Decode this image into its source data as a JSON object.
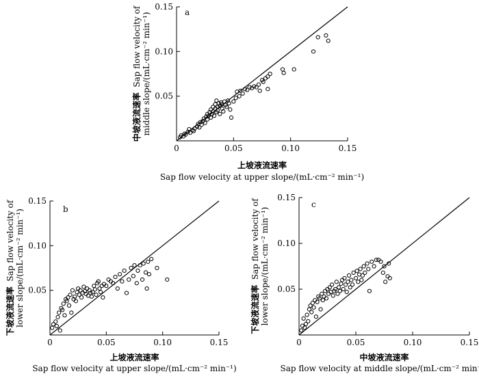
{
  "chart_data": [
    {
      "type": "scatter",
      "panel": "a",
      "xlabel_cn": "上坡液流速率",
      "xlabel_en": "Sap flow velocity at upper slope/(mL·cm⁻² min⁻¹)",
      "ylabel_cn": "中坡液流速率",
      "ylabel_en_1": "Sap flow velocity of",
      "ylabel_en_2": "middle slope/(mL·cm⁻² min⁻¹)",
      "xlim": [
        0,
        0.15
      ],
      "ylim": [
        0,
        0.15
      ],
      "xticks": [
        "0",
        "0.05",
        "0.10",
        "0.15"
      ],
      "yticks": [
        "0.05",
        "0.10",
        "0.15"
      ],
      "reference_line": "1:1",
      "points": [
        [
          0.003,
          0.004
        ],
        [
          0.004,
          0.006
        ],
        [
          0.006,
          0.005
        ],
        [
          0.007,
          0.008
        ],
        [
          0.008,
          0.007
        ],
        [
          0.01,
          0.01
        ],
        [
          0.011,
          0.013
        ],
        [
          0.012,
          0.009
        ],
        [
          0.014,
          0.012
        ],
        [
          0.015,
          0.011
        ],
        [
          0.016,
          0.014
        ],
        [
          0.018,
          0.016
        ],
        [
          0.019,
          0.019
        ],
        [
          0.02,
          0.015
        ],
        [
          0.021,
          0.021
        ],
        [
          0.022,
          0.018
        ],
        [
          0.023,
          0.022
        ],
        [
          0.024,
          0.025
        ],
        [
          0.025,
          0.02
        ],
        [
          0.026,
          0.027
        ],
        [
          0.027,
          0.024
        ],
        [
          0.027,
          0.03
        ],
        [
          0.028,
          0.028
        ],
        [
          0.029,
          0.032
        ],
        [
          0.03,
          0.026
        ],
        [
          0.03,
          0.035
        ],
        [
          0.031,
          0.03
        ],
        [
          0.032,
          0.038
        ],
        [
          0.032,
          0.033
        ],
        [
          0.033,
          0.028
        ],
        [
          0.034,
          0.036
        ],
        [
          0.034,
          0.041
        ],
        [
          0.035,
          0.032
        ],
        [
          0.035,
          0.045
        ],
        [
          0.036,
          0.038
        ],
        [
          0.036,
          0.034
        ],
        [
          0.037,
          0.042
        ],
        [
          0.038,
          0.03
        ],
        [
          0.038,
          0.039
        ],
        [
          0.039,
          0.043
        ],
        [
          0.04,
          0.036
        ],
        [
          0.04,
          0.041
        ],
        [
          0.041,
          0.033
        ],
        [
          0.042,
          0.044
        ],
        [
          0.043,
          0.04
        ],
        [
          0.044,
          0.038
        ],
        [
          0.045,
          0.045
        ],
        [
          0.046,
          0.042
        ],
        [
          0.047,
          0.035
        ],
        [
          0.048,
          0.026
        ],
        [
          0.05,
          0.044
        ],
        [
          0.052,
          0.048
        ],
        [
          0.053,
          0.055
        ],
        [
          0.055,
          0.05
        ],
        [
          0.056,
          0.056
        ],
        [
          0.058,
          0.053
        ],
        [
          0.06,
          0.058
        ],
        [
          0.062,
          0.057
        ],
        [
          0.064,
          0.06
        ],
        [
          0.066,
          0.059
        ],
        [
          0.068,
          0.061
        ],
        [
          0.07,
          0.06
        ],
        [
          0.072,
          0.063
        ],
        [
          0.073,
          0.056
        ],
        [
          0.075,
          0.068
        ],
        [
          0.076,
          0.066
        ],
        [
          0.078,
          0.07
        ],
        [
          0.08,
          0.058
        ],
        [
          0.08,
          0.072
        ],
        [
          0.082,
          0.075
        ],
        [
          0.093,
          0.08
        ],
        [
          0.094,
          0.076
        ],
        [
          0.103,
          0.08
        ],
        [
          0.12,
          0.1
        ],
        [
          0.124,
          0.116
        ],
        [
          0.131,
          0.118
        ],
        [
          0.133,
          0.112
        ]
      ]
    },
    {
      "type": "scatter",
      "panel": "b",
      "xlabel_cn": "上坡液流速率",
      "xlabel_en": "Sap flow velocity at upper slope/(mL·cm⁻² min⁻¹)",
      "ylabel_cn": "下坡液流速率",
      "ylabel_en_1": "Sap flow velocity of",
      "ylabel_en_2": "lower slope/(mL·cm⁻² min⁻¹)",
      "xlim": [
        0,
        0.15
      ],
      "ylim": [
        0,
        0.15
      ],
      "xticks": [
        "0",
        "0.05",
        "0.10",
        "0.15"
      ],
      "yticks": [
        "0.05",
        "0.10",
        "0.15"
      ],
      "reference_line": "1:1",
      "points": [
        [
          0.002,
          0.008
        ],
        [
          0.003,
          0.012
        ],
        [
          0.005,
          0.015
        ],
        [
          0.006,
          0.01
        ],
        [
          0.007,
          0.02
        ],
        [
          0.008,
          0.025
        ],
        [
          0.009,
          0.005
        ],
        [
          0.01,
          0.03
        ],
        [
          0.011,
          0.028
        ],
        [
          0.012,
          0.035
        ],
        [
          0.013,
          0.022
        ],
        [
          0.014,
          0.04
        ],
        [
          0.015,
          0.038
        ],
        [
          0.016,
          0.042
        ],
        [
          0.017,
          0.033
        ],
        [
          0.018,
          0.045
        ],
        [
          0.019,
          0.025
        ],
        [
          0.02,
          0.05
        ],
        [
          0.021,
          0.04
        ],
        [
          0.022,
          0.043
        ],
        [
          0.023,
          0.038
        ],
        [
          0.024,
          0.048
        ],
        [
          0.025,
          0.052
        ],
        [
          0.026,
          0.045
        ],
        [
          0.027,
          0.05
        ],
        [
          0.028,
          0.042
        ],
        [
          0.029,
          0.047
        ],
        [
          0.03,
          0.054
        ],
        [
          0.031,
          0.049
        ],
        [
          0.032,
          0.046
        ],
        [
          0.033,
          0.052
        ],
        [
          0.034,
          0.044
        ],
        [
          0.035,
          0.05
        ],
        [
          0.036,
          0.047
        ],
        [
          0.037,
          0.043
        ],
        [
          0.038,
          0.048
        ],
        [
          0.039,
          0.055
        ],
        [
          0.04,
          0.051
        ],
        [
          0.041,
          0.045
        ],
        [
          0.042,
          0.058
        ],
        [
          0.043,
          0.06
        ],
        [
          0.044,
          0.052
        ],
        [
          0.045,
          0.048
        ],
        [
          0.046,
          0.055
        ],
        [
          0.047,
          0.042
        ],
        [
          0.048,
          0.057
        ],
        [
          0.05,
          0.055
        ],
        [
          0.052,
          0.062
        ],
        [
          0.054,
          0.06
        ],
        [
          0.056,
          0.058
        ],
        [
          0.058,
          0.065
        ],
        [
          0.06,
          0.052
        ],
        [
          0.062,
          0.068
        ],
        [
          0.064,
          0.06
        ],
        [
          0.066,
          0.072
        ],
        [
          0.068,
          0.047
        ],
        [
          0.07,
          0.062
        ],
        [
          0.072,
          0.075
        ],
        [
          0.074,
          0.066
        ],
        [
          0.075,
          0.078
        ],
        [
          0.077,
          0.058
        ],
        [
          0.078,
          0.072
        ],
        [
          0.08,
          0.078
        ],
        [
          0.082,
          0.062
        ],
        [
          0.083,
          0.08
        ],
        [
          0.085,
          0.07
        ],
        [
          0.086,
          0.052
        ],
        [
          0.087,
          0.082
        ],
        [
          0.088,
          0.068
        ],
        [
          0.09,
          0.085
        ],
        [
          0.095,
          0.075
        ],
        [
          0.104,
          0.062
        ]
      ]
    },
    {
      "type": "scatter",
      "panel": "c",
      "xlabel_cn": "中坡液流速率",
      "xlabel_en": "Sap flow velocity at middle slope/(mL·cm⁻² min⁻¹)",
      "ylabel_cn": "下坡液流速率",
      "ylabel_en_1": "Sap flow velocity of",
      "ylabel_en_2": "lower slope/(mL·cm⁻² min⁻¹)",
      "xlim": [
        0,
        0.15
      ],
      "ylim": [
        0,
        0.15
      ],
      "xticks": [
        "0",
        "0.05",
        "0.10",
        "0.15"
      ],
      "yticks": [
        "0.05",
        "0.10",
        "0.15"
      ],
      "reference_line": "1:1",
      "points": [
        [
          0.002,
          0.005
        ],
        [
          0.003,
          0.01
        ],
        [
          0.004,
          0.018
        ],
        [
          0.005,
          0.008
        ],
        [
          0.006,
          0.012
        ],
        [
          0.007,
          0.022
        ],
        [
          0.008,
          0.015
        ],
        [
          0.009,
          0.028
        ],
        [
          0.01,
          0.032
        ],
        [
          0.011,
          0.025
        ],
        [
          0.012,
          0.035
        ],
        [
          0.013,
          0.03
        ],
        [
          0.014,
          0.038
        ],
        [
          0.015,
          0.02
        ],
        [
          0.016,
          0.036
        ],
        [
          0.017,
          0.042
        ],
        [
          0.018,
          0.04
        ],
        [
          0.019,
          0.028
        ],
        [
          0.02,
          0.045
        ],
        [
          0.021,
          0.038
        ],
        [
          0.022,
          0.042
        ],
        [
          0.023,
          0.048
        ],
        [
          0.024,
          0.04
        ],
        [
          0.025,
          0.05
        ],
        [
          0.026,
          0.045
        ],
        [
          0.027,
          0.052
        ],
        [
          0.028,
          0.047
        ],
        [
          0.029,
          0.055
        ],
        [
          0.03,
          0.043
        ],
        [
          0.031,
          0.048
        ],
        [
          0.032,
          0.05
        ],
        [
          0.033,
          0.058
        ],
        [
          0.034,
          0.045
        ],
        [
          0.035,
          0.052
        ],
        [
          0.036,
          0.048
        ],
        [
          0.037,
          0.056
        ],
        [
          0.038,
          0.06
        ],
        [
          0.039,
          0.05
        ],
        [
          0.04,
          0.062
        ],
        [
          0.041,
          0.055
        ],
        [
          0.042,
          0.047
        ],
        [
          0.043,
          0.058
        ],
        [
          0.044,
          0.065
        ],
        [
          0.045,
          0.052
        ],
        [
          0.046,
          0.06
        ],
        [
          0.047,
          0.055
        ],
        [
          0.048,
          0.068
        ],
        [
          0.05,
          0.062
        ],
        [
          0.051,
          0.07
        ],
        [
          0.052,
          0.058
        ],
        [
          0.053,
          0.066
        ],
        [
          0.054,
          0.072
        ],
        [
          0.055,
          0.06
        ],
        [
          0.056,
          0.065
        ],
        [
          0.057,
          0.075
        ],
        [
          0.058,
          0.068
        ],
        [
          0.06,
          0.078
        ],
        [
          0.061,
          0.072
        ],
        [
          0.062,
          0.048
        ],
        [
          0.064,
          0.08
        ],
        [
          0.066,
          0.075
        ],
        [
          0.068,
          0.082
        ],
        [
          0.07,
          0.082
        ],
        [
          0.072,
          0.08
        ],
        [
          0.074,
          0.068
        ],
        [
          0.075,
          0.075
        ],
        [
          0.076,
          0.058
        ],
        [
          0.078,
          0.064
        ],
        [
          0.079,
          0.078
        ],
        [
          0.08,
          0.062
        ]
      ]
    }
  ]
}
